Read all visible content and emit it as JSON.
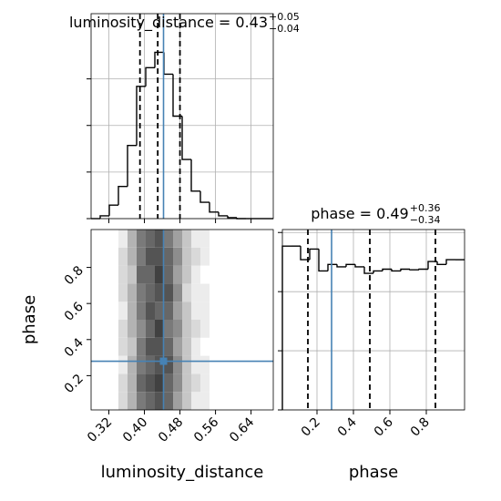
{
  "chart_data": [
    {
      "type": "histogram",
      "title": {
        "main": "luminosity_distance = 0.43",
        "plus": "+0.05",
        "minus": "−0.04"
      },
      "bins": [
        0.28,
        0.3005,
        0.321,
        0.3415,
        0.362,
        0.3825,
        0.403,
        0.4235,
        0.444,
        0.4645,
        0.485,
        0.5055,
        0.526,
        0.5465,
        0.567,
        0.5875,
        0.608,
        0.6285,
        0.649,
        0.6695,
        0.69
      ],
      "values": [
        0,
        0.06,
        0.29,
        0.69,
        1.57,
        2.84,
        3.24,
        3.57,
        3.1,
        2.2,
        1.27,
        0.59,
        0.35,
        0.14,
        0.06,
        0.02,
        0,
        0,
        0,
        0
      ],
      "color": "#000000",
      "xlim": [
        0.28,
        0.69
      ],
      "ylim": [
        0,
        4.4
      ],
      "yticks": [
        0,
        1,
        2,
        3
      ],
      "quantiles": [
        0.39,
        0.43,
        0.48
      ],
      "truth": 0.443,
      "truth_color": "#4682b4",
      "grid": true
    },
    {
      "type": "hist2d",
      "xlabel": "luminosity_distance",
      "ylabel": "phase",
      "xlim": [
        0.28,
        0.69
      ],
      "ylim": [
        0.01,
        1.01
      ],
      "xticks": [
        0.32,
        {
          "value": 0.4,
          "label": "0.40"
        },
        0.48,
        0.56,
        0.64
      ],
      "yticks": [
        0.2,
        0.4,
        0.6,
        0.8
      ],
      "xbins": [
        0.3415,
        0.362,
        0.3825,
        0.403,
        0.4235,
        0.444,
        0.4645,
        0.485,
        0.5055,
        0.526,
        0.5465,
        0.567,
        0.5875
      ],
      "ybins": [
        0.01,
        0.11,
        0.21,
        0.31,
        0.41,
        0.51,
        0.61,
        0.71,
        0.81,
        0.91,
        1.01
      ],
      "counts": [
        [
          2,
          4,
          7,
          8,
          9,
          8,
          5,
          3,
          1,
          1,
          0,
          0
        ],
        [
          2,
          4,
          8,
          9,
          10,
          8,
          6,
          3,
          2,
          1,
          0,
          0
        ],
        [
          1,
          4,
          7,
          8,
          9,
          9,
          6,
          3,
          1,
          1,
          0,
          0
        ],
        [
          2,
          3,
          7,
          9,
          9,
          8,
          5,
          3,
          1,
          0,
          0,
          0
        ],
        [
          2,
          4,
          6,
          8,
          10,
          7,
          6,
          3,
          2,
          1,
          0,
          0
        ],
        [
          1,
          4,
          7,
          9,
          8,
          8,
          5,
          3,
          1,
          1,
          0,
          0
        ],
        [
          2,
          4,
          7,
          8,
          9,
          9,
          6,
          2,
          1,
          1,
          0,
          0
        ],
        [
          2,
          3,
          8,
          8,
          10,
          8,
          5,
          3,
          1,
          0,
          0,
          0
        ],
        [
          2,
          4,
          7,
          9,
          9,
          8,
          6,
          3,
          2,
          1,
          0,
          0
        ],
        [
          1,
          4,
          7,
          8,
          9,
          7,
          5,
          3,
          1,
          1,
          0,
          0
        ]
      ],
      "truth_x": 0.443,
      "truth_y": 0.28,
      "truth_color": "#4682b4"
    },
    {
      "type": "histogram",
      "title": {
        "main": "phase = 0.49",
        "plus": "+0.36",
        "minus": "−0.34"
      },
      "xlabel": "phase",
      "bins": [
        0.01,
        0.06,
        0.11,
        0.16,
        0.21,
        0.26,
        0.31,
        0.36,
        0.41,
        0.46,
        0.51,
        0.56,
        0.61,
        0.66,
        0.71,
        0.76,
        0.81,
        0.86,
        0.91,
        0.96,
        1.01
      ],
      "values": [
        2.77,
        2.77,
        2.54,
        2.72,
        2.35,
        2.46,
        2.42,
        2.46,
        2.42,
        2.31,
        2.35,
        2.38,
        2.35,
        2.38,
        2.37,
        2.38,
        2.51,
        2.46,
        2.54,
        2.54
      ],
      "color": "#000000",
      "xlim": [
        0.01,
        1.01
      ],
      "ylim": [
        0,
        3.05
      ],
      "yticks": [
        0,
        1,
        2,
        3
      ],
      "xticks": [
        0.2,
        0.4,
        0.6,
        0.8
      ],
      "quantiles": [
        0.15,
        0.49,
        0.85
      ],
      "truth": 0.28,
      "truth_color": "#4682b4",
      "grid": true
    }
  ]
}
